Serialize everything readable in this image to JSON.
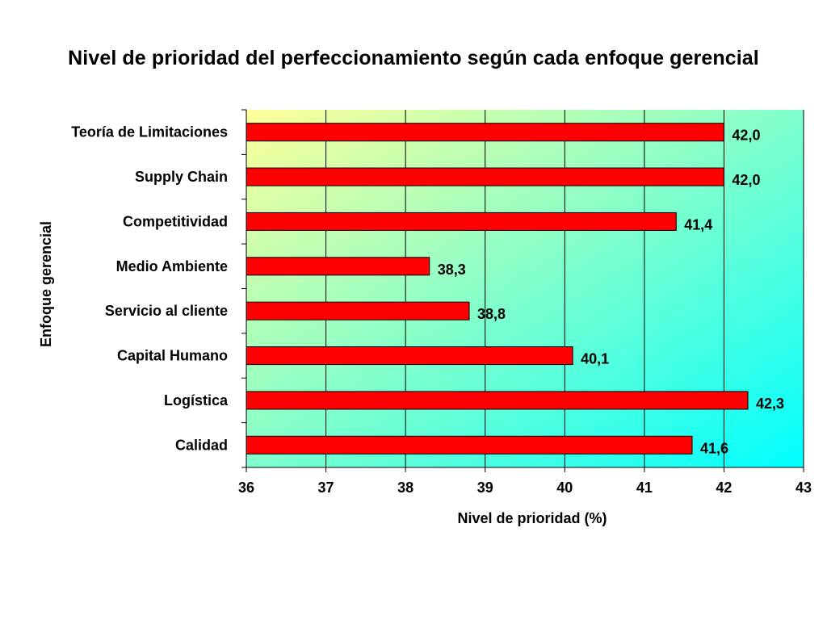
{
  "chart_data": {
    "type": "bar",
    "orientation": "horizontal",
    "title": "Nivel de prioridad del perfeccionamiento según cada enfoque gerencial",
    "xlabel": "Nivel de prioridad (%)",
    "ylabel": "Enfoque gerencial",
    "categories": [
      "Teoría de Limitaciones",
      "Supply Chain",
      "Competitividad",
      "Medio Ambiente",
      "Servicio al cliente",
      "Capital Humano",
      "Logística",
      "Calidad"
    ],
    "values": [
      42.0,
      42.0,
      41.4,
      38.3,
      38.8,
      40.1,
      42.3,
      41.6
    ],
    "value_labels": [
      "42,0",
      "42,0",
      "41,4",
      "38,3",
      "38,8",
      "40,1",
      "42,3",
      "41,6"
    ],
    "xlim": [
      36,
      43
    ],
    "xticks": [
      36,
      37,
      38,
      39,
      40,
      41,
      42,
      43
    ],
    "grid": "vertical",
    "bar_color": "#ff0000",
    "background_gradient": [
      "#ffff99",
      "#00ffff"
    ]
  }
}
